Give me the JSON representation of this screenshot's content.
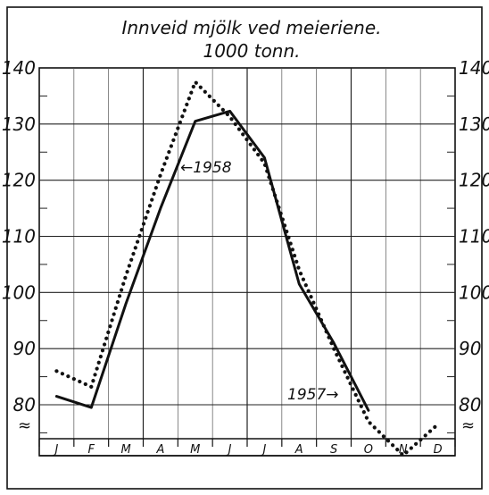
{
  "chart_data": {
    "type": "line",
    "title": "Innveid mjölk ved meieriene.",
    "subtitle": "1000 tonn.",
    "categories": [
      "J",
      "F",
      "M",
      "A",
      "M",
      "J",
      "J",
      "A",
      "S",
      "O",
      "N",
      "D"
    ],
    "y_ticks": [
      "80",
      "90",
      "100",
      "110",
      "120",
      "130",
      "140"
    ],
    "ylim": [
      70,
      140
    ],
    "axis_break_symbol": "≈",
    "grid": true,
    "series": [
      {
        "name": "1958",
        "line_style": "solid",
        "values": [
          81.5,
          79.5,
          98,
          115,
          130.5,
          132.3,
          124,
          101.5,
          91,
          79,
          null,
          null
        ]
      },
      {
        "name": "1957",
        "line_style": "dotted",
        "values": [
          86,
          83.2,
          103,
          121,
          137.5,
          131.3,
          123,
          104,
          90,
          77,
          71,
          76.5
        ]
      }
    ],
    "annotations": [
      {
        "text": "←1958",
        "series": "1958"
      },
      {
        "text": "1957→",
        "series": "1957"
      }
    ]
  }
}
